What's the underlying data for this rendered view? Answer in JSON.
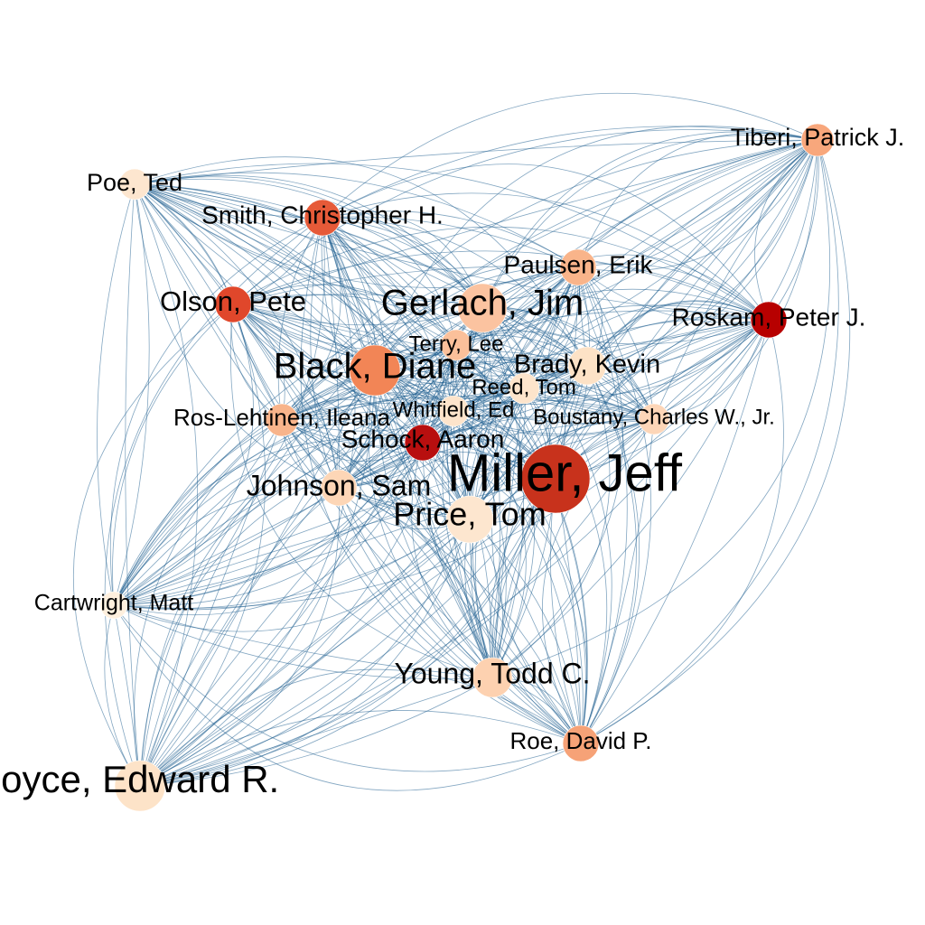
{
  "network": {
    "type": "network-graph",
    "edge_color": "#1f5f8f",
    "node_color_scale": [
      "#fde0c5",
      "#fcbb93",
      "#f7865a",
      "#e4532f",
      "#c2270f",
      "#b00000"
    ],
    "nodes": [
      {
        "label": "Miller, Jeff",
        "color": "#c8321c"
      },
      {
        "label": "Price, Tom",
        "color": "#fde6cf"
      },
      {
        "label": "Young, Todd C.",
        "color": "#fdd1b0"
      },
      {
        "label": "Roe, David P.",
        "color": "#f6a277"
      },
      {
        "label": "Royce, Edward R.",
        "color": "#fde3c8"
      },
      {
        "label": "Cartwright, Matt",
        "color": "#fff0de"
      },
      {
        "label": "Johnson, Sam",
        "color": "#fdd6b6"
      },
      {
        "label": "Schock, Aaron",
        "color": "#b80f0f"
      },
      {
        "label": "Ros-Lehtinen, Ileana",
        "color": "#f8b48b"
      },
      {
        "label": "Whitfield, Ed",
        "color": "#fde4cb"
      },
      {
        "label": "Boustany, Charles W., Jr.",
        "color": "#fdd6b8"
      },
      {
        "label": "Reed, Tom",
        "color": "#fde4cb"
      },
      {
        "label": "Brady, Kevin",
        "color": "#fde2c6"
      },
      {
        "label": "Black, Diane",
        "color": "#f28556"
      },
      {
        "label": "Terry, Lee",
        "color": "#fbc09a"
      },
      {
        "label": "Gerlach, Jim",
        "color": "#fbc3a0"
      },
      {
        "label": "Paulsen, Erik",
        "color": "#f9b48a"
      },
      {
        "label": "Roskam, Peter J.",
        "color": "#b70000"
      },
      {
        "label": "Olson, Pete",
        "color": "#e0472b"
      },
      {
        "label": "Smith, Christopher H.",
        "color": "#e65a38"
      },
      {
        "label": "Poe, Ted",
        "color": "#fde6cf"
      },
      {
        "label": "Tiberi, Patrick J.",
        "color": "#f8a77c"
      }
    ]
  }
}
